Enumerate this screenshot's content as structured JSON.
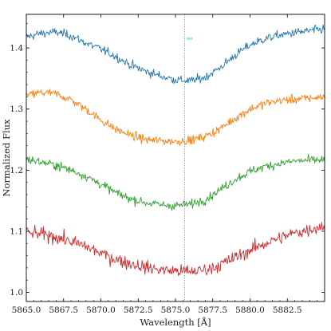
{
  "chart_data": {
    "type": "line",
    "title": "",
    "xlabel": "Wavelength [Å]",
    "ylabel": "Normalized Flux",
    "xlim": [
      5865.0,
      5885.0
    ],
    "ylim": [
      0.985,
      1.455
    ],
    "xticks": [
      5865.0,
      5867.5,
      5870.0,
      5872.5,
      5875.0,
      5877.5,
      5880.0,
      5882.5
    ],
    "xtick_labels": [
      "5865.0",
      "5867.5",
      "5870.0",
      "5872.5",
      "5875.0",
      "5877.5",
      "5880.0",
      "5882.5"
    ],
    "yticks": [
      1.0,
      1.1,
      1.2,
      1.3,
      1.4
    ],
    "ytick_labels": [
      "1.0",
      "1.1",
      "1.2",
      "1.3",
      "1.4"
    ],
    "grid": false,
    "legend": "none",
    "annotation": {
      "text": "HeI",
      "x": 5875.62,
      "color": "#17becf"
    },
    "series": [
      {
        "color": "#1f77b4",
        "x": [
          5865.0,
          5866.0,
          5867.0,
          5868.0,
          5869.0,
          5870.0,
          5871.0,
          5872.0,
          5873.0,
          5874.0,
          5875.0,
          5876.0,
          5877.0,
          5878.0,
          5879.0,
          5880.0,
          5881.0,
          5882.0,
          5883.0,
          5884.0,
          5885.0
        ],
        "y": [
          1.418,
          1.424,
          1.426,
          1.42,
          1.408,
          1.398,
          1.386,
          1.372,
          1.362,
          1.354,
          1.348,
          1.346,
          1.352,
          1.368,
          1.388,
          1.405,
          1.415,
          1.421,
          1.425,
          1.428,
          1.431
        ]
      },
      {
        "color": "#ff7f0e",
        "x": [
          5865.0,
          5866.0,
          5867.0,
          5868.0,
          5869.0,
          5870.0,
          5871.0,
          5872.0,
          5873.0,
          5874.0,
          5875.0,
          5876.0,
          5877.0,
          5878.0,
          5879.0,
          5880.0,
          5881.0,
          5882.0,
          5883.0,
          5884.0,
          5885.0
        ],
        "y": [
          1.322,
          1.327,
          1.325,
          1.315,
          1.3,
          1.282,
          1.267,
          1.257,
          1.25,
          1.248,
          1.247,
          1.249,
          1.255,
          1.268,
          1.285,
          1.3,
          1.309,
          1.314,
          1.316,
          1.318,
          1.32
        ]
      },
      {
        "color": "#2ca02c",
        "x": [
          5865.0,
          5866.0,
          5867.0,
          5868.0,
          5869.0,
          5870.0,
          5871.0,
          5872.0,
          5873.0,
          5874.0,
          5875.0,
          5876.0,
          5877.0,
          5878.0,
          5879.0,
          5880.0,
          5881.0,
          5882.0,
          5883.0,
          5884.0,
          5885.0
        ],
        "y": [
          1.218,
          1.213,
          1.208,
          1.2,
          1.19,
          1.177,
          1.163,
          1.153,
          1.147,
          1.143,
          1.142,
          1.144,
          1.152,
          1.168,
          1.185,
          1.198,
          1.206,
          1.211,
          1.215,
          1.216,
          1.217
        ]
      },
      {
        "color": "#d62728",
        "x": [
          5865.0,
          5866.0,
          5867.0,
          5868.0,
          5869.0,
          5870.0,
          5871.0,
          5872.0,
          5873.0,
          5874.0,
          5875.0,
          5876.0,
          5877.0,
          5878.0,
          5879.0,
          5880.0,
          5881.0,
          5882.0,
          5883.0,
          5884.0,
          5885.0
        ],
        "y": [
          1.098,
          1.095,
          1.091,
          1.083,
          1.075,
          1.064,
          1.054,
          1.047,
          1.041,
          1.037,
          1.035,
          1.034,
          1.037,
          1.045,
          1.057,
          1.069,
          1.08,
          1.089,
          1.097,
          1.103,
          1.109
        ]
      }
    ]
  }
}
